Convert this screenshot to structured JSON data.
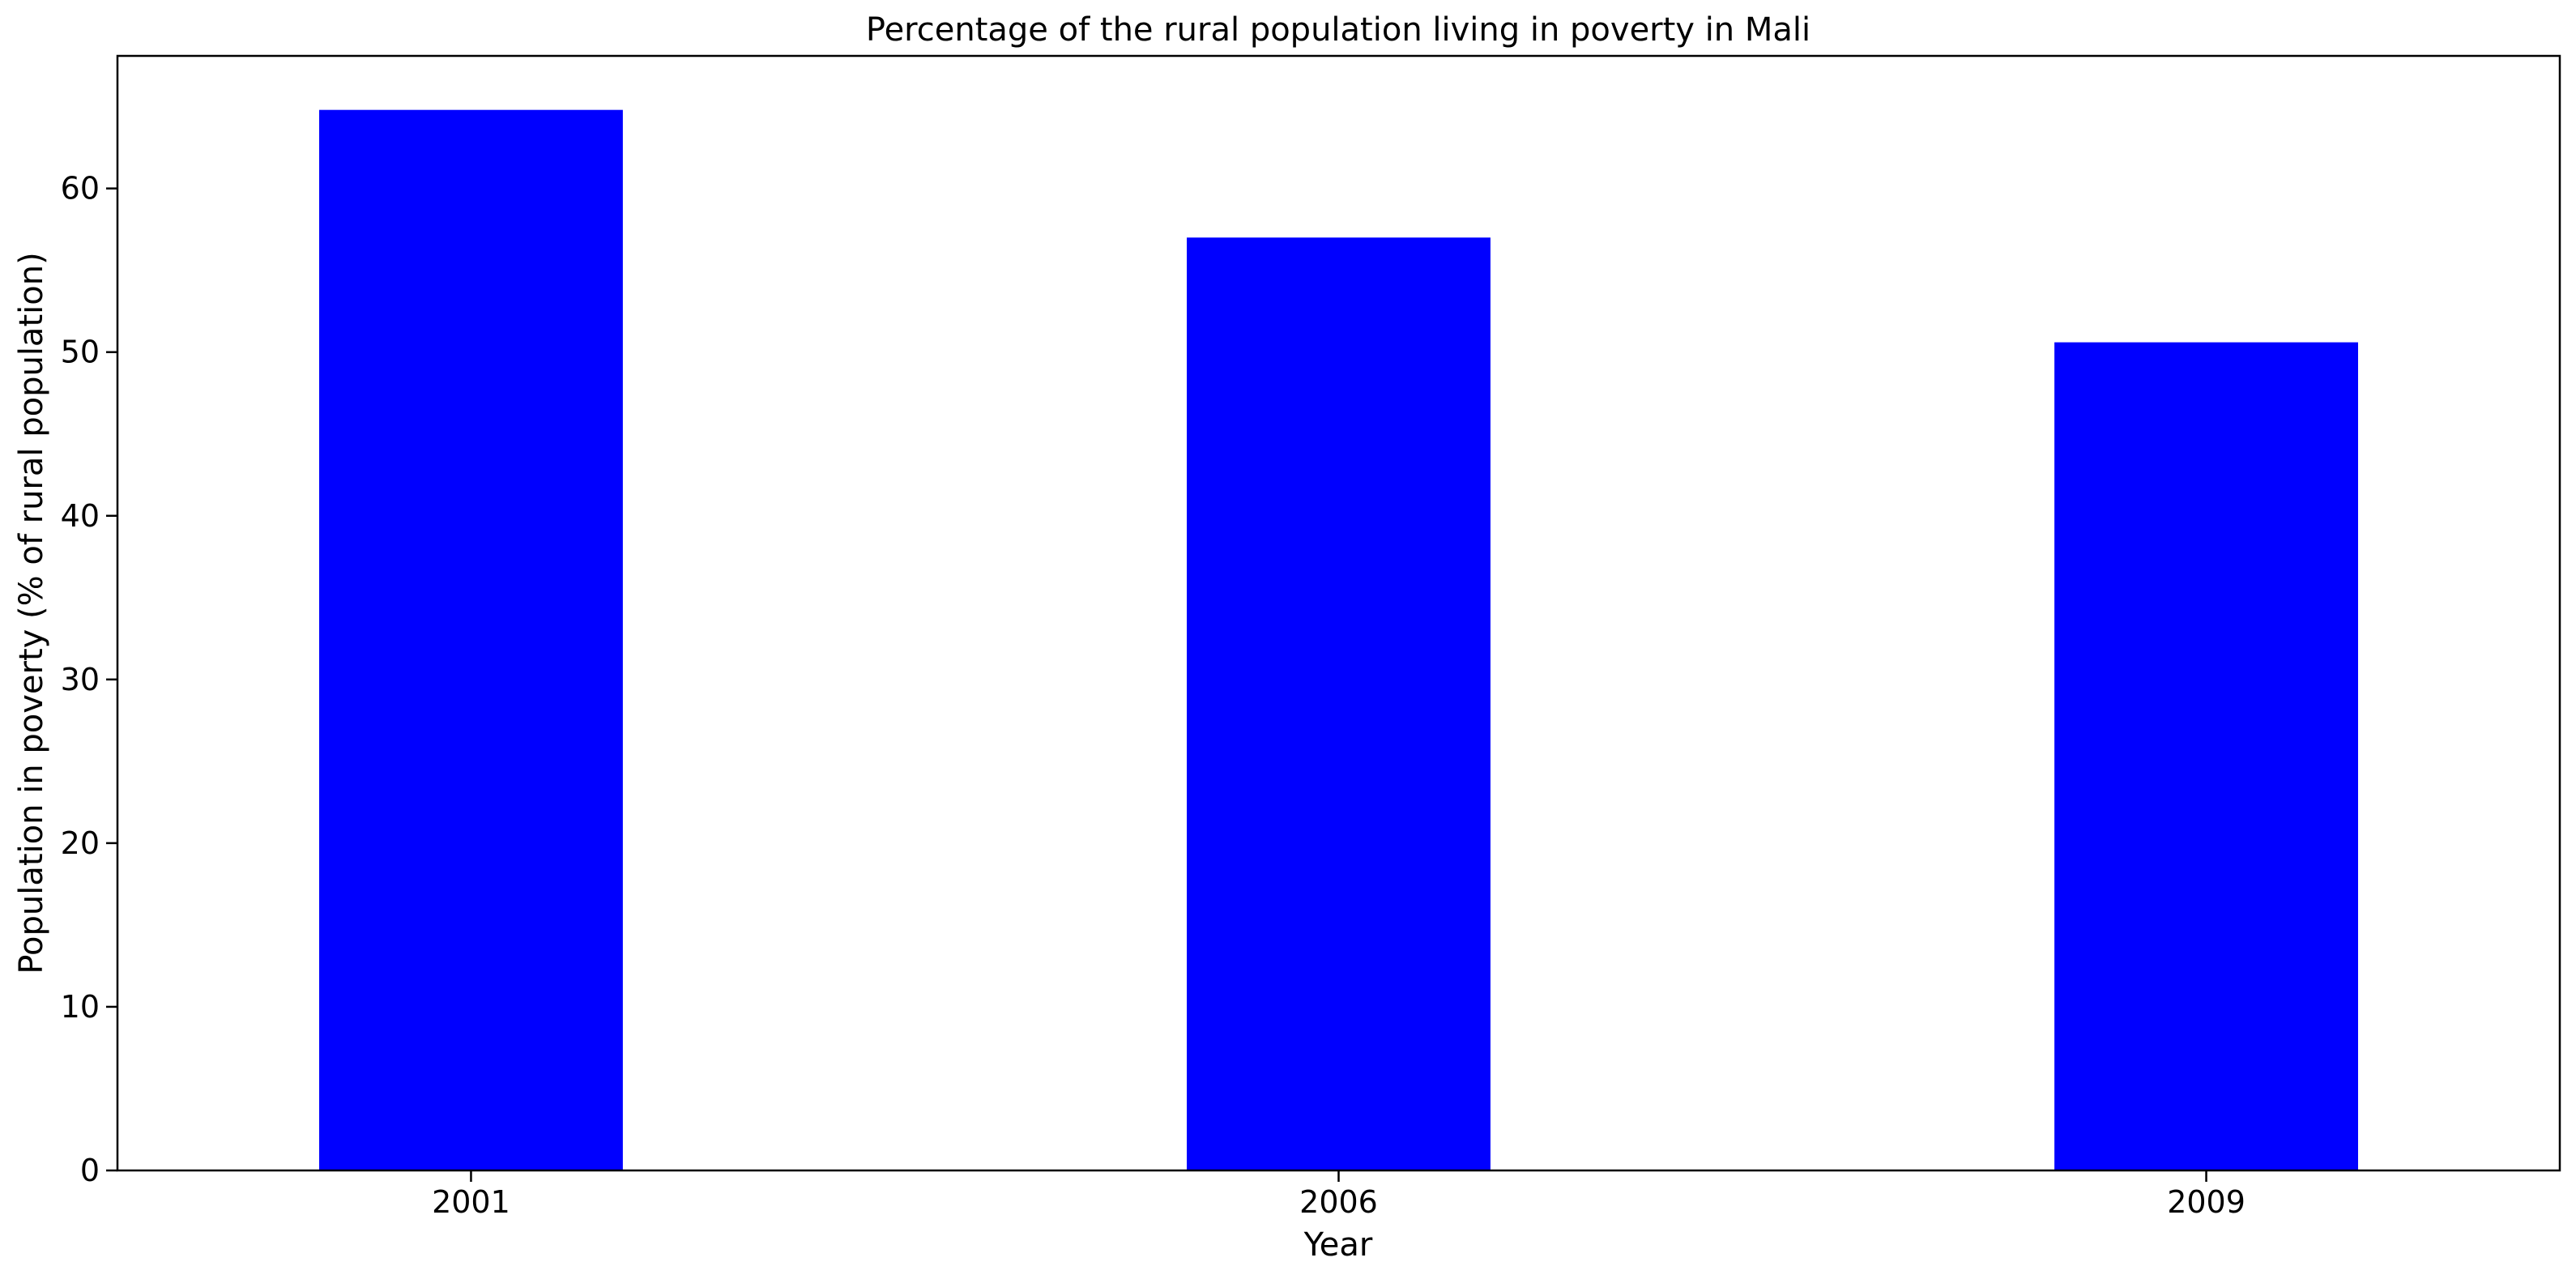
{
  "chart_data": {
    "type": "bar",
    "title": "Percentage of the rural population living in poverty in Mali",
    "xlabel": "Year",
    "ylabel": "Population in poverty (% of rural population)",
    "categories": [
      "2001",
      "2006",
      "2009"
    ],
    "values": [
      64.8,
      57.0,
      50.6
    ],
    "ylim": [
      0,
      68.1
    ],
    "yticks": [
      0,
      10,
      20,
      30,
      40,
      50,
      60
    ],
    "bar_color": "#0000ff",
    "grid": false,
    "legend": "none"
  }
}
